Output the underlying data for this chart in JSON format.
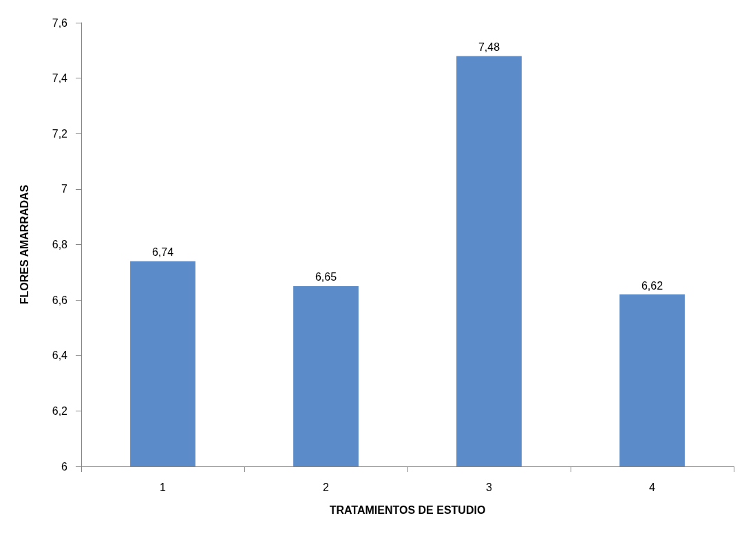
{
  "chart_data": {
    "type": "bar",
    "xlabel": "TRATAMIENTOS DE ESTUDIO",
    "ylabel": "FLORES AMARRADAS",
    "categories": [
      "1",
      "2",
      "3",
      "4"
    ],
    "values": [
      6.74,
      6.65,
      7.48,
      6.62
    ],
    "value_labels": [
      "6,74",
      "6,65",
      "7,48",
      "6,62"
    ],
    "color": "#5b8bc9",
    "ylim": [
      6,
      7.6
    ],
    "yticks": [
      6,
      {
        "value": 6.2,
        "label": "6,2"
      },
      {
        "value": 6.4,
        "label": "6,4"
      },
      {
        "value": 6.6,
        "label": "6,6"
      },
      {
        "value": 6.8,
        "label": "6,8"
      },
      7,
      {
        "value": 7.2,
        "label": "7,2"
      },
      {
        "value": 7.4,
        "label": "7,4"
      },
      {
        "value": 7.6,
        "label": "7,6"
      }
    ],
    "grid": false
  }
}
